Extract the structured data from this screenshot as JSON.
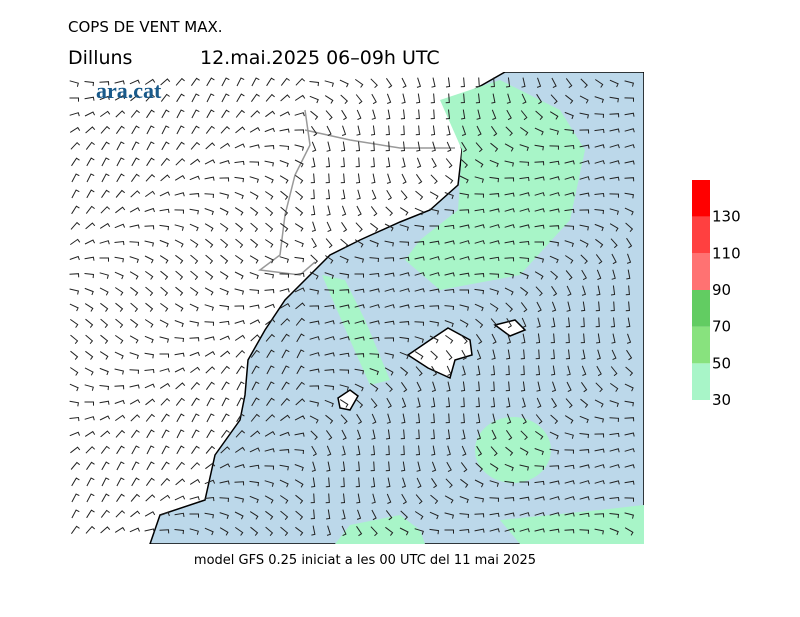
{
  "header": {
    "title": "COPS DE VENT MAX.",
    "day": "Dilluns",
    "period": "12.mai.2025 06–09h UTC",
    "logo": "ara.cat"
  },
  "footer": "model GFS 0.25 iniciat a les 00 UTC del 11 mai 2025",
  "legend": {
    "ticks": [
      30,
      50,
      70,
      90,
      110,
      130
    ],
    "colors": [
      "#a8f5c8",
      "#88e27e",
      "#62cc62",
      "#ff7272",
      "#ff4040",
      "#ff0000"
    ]
  }
}
